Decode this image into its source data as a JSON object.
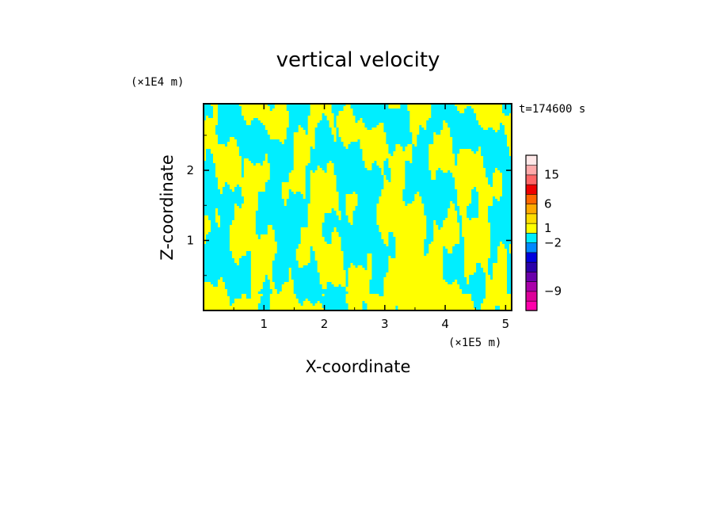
{
  "chart_data": {
    "type": "heatmap",
    "title": "vertical velocity",
    "xlabel": "X-coordinate",
    "ylabel": "Z-coordinate",
    "x_unit": "(×1E5 m)",
    "y_unit": "(×1E4 m)",
    "time_label": "t=174600 s",
    "xlim": [
      0,
      5.1
    ],
    "ylim": [
      0,
      2.95
    ],
    "x_ticks": [
      "1",
      "2",
      "3",
      "4",
      "5"
    ],
    "y_ticks": [
      "1",
      "2"
    ],
    "colorbar": {
      "labels": [
        "15",
        "6",
        "1",
        "−2",
        "−9"
      ],
      "levels": [
        {
          "color": "#ff00aa"
        },
        {
          "color": "#dd0099"
        },
        {
          "color": "#aa00aa"
        },
        {
          "color": "#6a00aa"
        },
        {
          "color": "#2a00aa"
        },
        {
          "color": "#0000dd"
        },
        {
          "color": "#0088ff"
        },
        {
          "color": "#00eeff"
        },
        {
          "color": "#ffff00"
        },
        {
          "color": "#ffdd00"
        },
        {
          "color": "#ffaa00"
        },
        {
          "color": "#ff6600"
        },
        {
          "color": "#ee0000"
        },
        {
          "color": "#ff6666"
        },
        {
          "color": "#ffaaaa"
        },
        {
          "color": "#ffe8e8"
        }
      ]
    },
    "field_colors": {
      "negative": "#00eeff",
      "positive": "#ffff00"
    }
  }
}
